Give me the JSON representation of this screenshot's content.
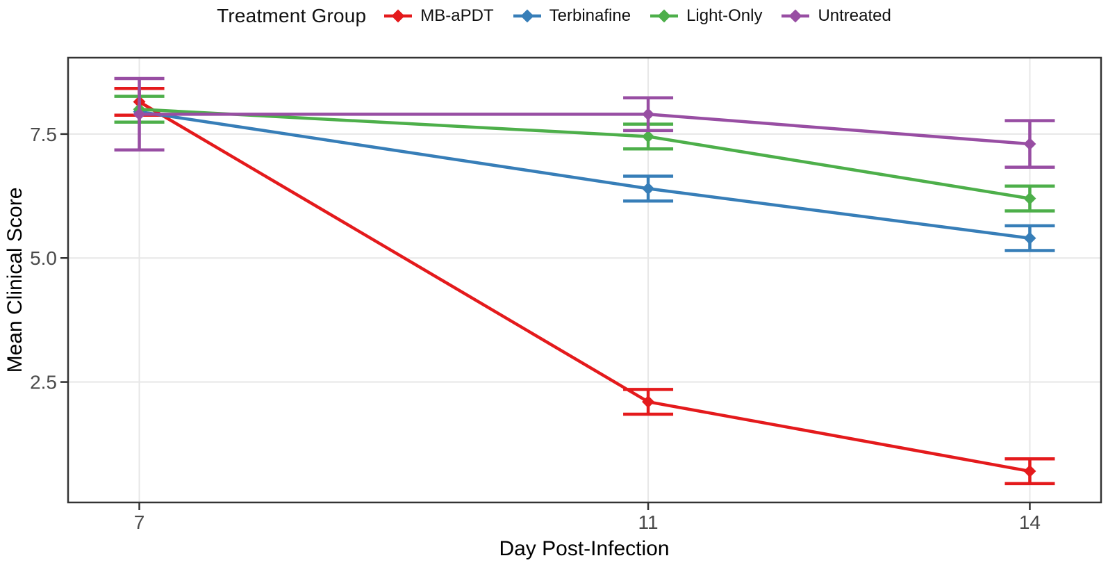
{
  "chart_data": {
    "type": "line",
    "legend_title": "Treatment Group",
    "legend_position": "top",
    "xlabel": "Day Post-Infection",
    "ylabel": "Mean Clinical Score",
    "x": [
      7,
      11,
      14
    ],
    "x_ticks": [
      {
        "v": 7,
        "label": "7"
      },
      {
        "v": 11,
        "label": "11"
      },
      {
        "v": 14,
        "label": "14"
      }
    ],
    "y_ticks": [
      {
        "v": 2.5,
        "label": "2.5"
      },
      {
        "v": 5.0,
        "label": "5.0"
      },
      {
        "v": 7.5,
        "label": "7.5"
      }
    ],
    "x_domain": [
      6.44,
      14.56
    ],
    "y_domain": [
      0.07,
      9.04
    ],
    "grid": "major gridlines only, horizontal and vertical, light gray, white panel, dark panel border",
    "marker": "diamond",
    "error_bars": true,
    "series": [
      {
        "name": "MB-aPDT",
        "color": "#E41A1C",
        "means": [
          8.15,
          2.1,
          0.7
        ],
        "errors": [
          0.27,
          0.25,
          0.25
        ]
      },
      {
        "name": "Terbinafine",
        "color": "#377EB8",
        "means": [
          7.95,
          6.4,
          5.4
        ],
        "errors": [
          0,
          0.25,
          0.25
        ],
        "note": "day-7 point and error bar hidden behind overlapping groups"
      },
      {
        "name": "Light-Only",
        "color": "#4DAF4A",
        "means": [
          8.0,
          7.45,
          6.2
        ],
        "errors": [
          0.26,
          0.25,
          0.25
        ]
      },
      {
        "name": "Untreated",
        "color": "#984EA3",
        "means": [
          7.9,
          7.9,
          7.3
        ],
        "errors": [
          0.72,
          0.33,
          0.47
        ]
      }
    ],
    "style": {
      "background": "#ffffff",
      "grid_color": "#e7e7e7",
      "panel_border_color": "#333333",
      "tick_color": "#333333",
      "tick_label_color": "#4a4a4a",
      "axis_title_color": "#000000",
      "legend_text_color": "#111111"
    }
  }
}
